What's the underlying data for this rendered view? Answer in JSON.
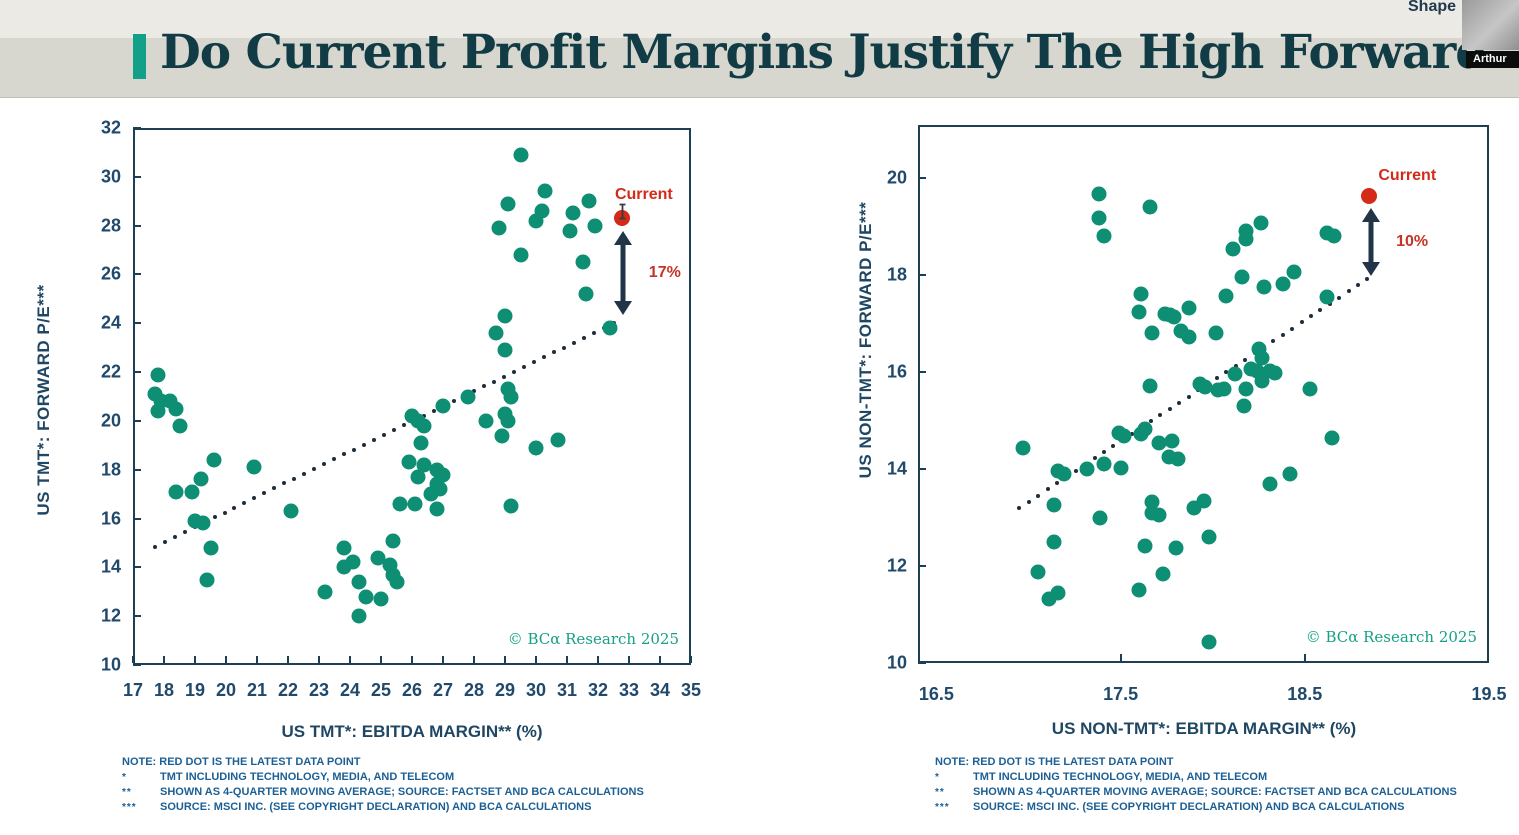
{
  "page": {
    "title": "Do Current Profit Margins Justify The High Forward",
    "shape_label": "Shape",
    "participant_label": "Arthur"
  },
  "colors": {
    "dot_green": "#0e8e73",
    "current_red": "#d42a1a",
    "annotation_red": "#c53426",
    "axis_navy": "#1d3f53",
    "tick_label_blue": "#20496b",
    "trend_dot": "#1f2d3a",
    "arrow_navy": "#223548",
    "watermark_teal": "#16a085",
    "footnote_blue": "#1c5f94",
    "header_beige": "#d8d7cf",
    "title_teal": "#123c45",
    "accent_teal": "#13a089"
  },
  "chart_data": [
    {
      "type": "scatter",
      "xlabel": "US TMT*: EBITDA MARGIN** (%)",
      "ylabel": "US TMT*: FORWARD P/E***",
      "xlim": [
        17,
        35
      ],
      "ylim": [
        10,
        32
      ],
      "x_ticks": [
        17,
        18,
        19,
        20,
        21,
        22,
        23,
        24,
        25,
        26,
        27,
        28,
        29,
        30,
        31,
        32,
        33,
        34,
        35
      ],
      "x_tick_marks": [
        17,
        18,
        19,
        20,
        21,
        22,
        23,
        24,
        25,
        26,
        27,
        28,
        29,
        30,
        31,
        32,
        33,
        34,
        35
      ],
      "y_ticks": [
        10,
        12,
        14,
        16,
        18,
        20,
        22,
        24,
        26,
        28,
        30,
        32
      ],
      "grid": false,
      "points": [
        [
          17.8,
          21.9
        ],
        [
          17.7,
          21.1
        ],
        [
          17.9,
          20.8
        ],
        [
          18.2,
          20.8
        ],
        [
          17.8,
          20.4
        ],
        [
          18.4,
          20.5
        ],
        [
          18.5,
          19.8
        ],
        [
          18.4,
          17.1
        ],
        [
          18.9,
          17.1
        ],
        [
          19.2,
          17.6
        ],
        [
          19.6,
          18.4
        ],
        [
          20.9,
          18.1
        ],
        [
          19.0,
          15.9
        ],
        [
          19.25,
          15.8
        ],
        [
          19.5,
          14.8
        ],
        [
          19.4,
          13.5
        ],
        [
          22.1,
          16.3
        ],
        [
          23.2,
          13.0
        ],
        [
          23.8,
          14.8
        ],
        [
          23.8,
          14.0
        ],
        [
          24.1,
          14.2
        ],
        [
          24.3,
          13.4
        ],
        [
          24.5,
          12.8
        ],
        [
          25.0,
          12.7
        ],
        [
          24.3,
          12.0
        ],
        [
          24.9,
          14.4
        ],
        [
          25.3,
          14.1
        ],
        [
          25.4,
          13.7
        ],
        [
          25.5,
          13.4
        ],
        [
          25.4,
          15.1
        ],
        [
          25.9,
          18.3
        ],
        [
          26.4,
          18.2
        ],
        [
          26.8,
          18.0
        ],
        [
          27.0,
          17.8
        ],
        [
          26.2,
          17.7
        ],
        [
          26.8,
          17.4
        ],
        [
          26.9,
          17.2
        ],
        [
          26.6,
          17.0
        ],
        [
          25.6,
          16.6
        ],
        [
          26.1,
          16.6
        ],
        [
          26.8,
          16.4
        ],
        [
          29.2,
          16.5
        ],
        [
          26.0,
          20.2
        ],
        [
          26.2,
          20.0
        ],
        [
          26.4,
          19.8
        ],
        [
          26.3,
          19.1
        ],
        [
          27.0,
          20.6
        ],
        [
          27.8,
          21.0
        ],
        [
          28.4,
          20.0
        ],
        [
          28.9,
          19.4
        ],
        [
          29.1,
          21.3
        ],
        [
          29.2,
          21.0
        ],
        [
          29.0,
          20.3
        ],
        [
          29.1,
          20.0
        ],
        [
          30.0,
          18.9
        ],
        [
          30.7,
          19.2
        ],
        [
          29.5,
          30.9
        ],
        [
          30.3,
          29.4
        ],
        [
          29.1,
          28.9
        ],
        [
          30.2,
          28.6
        ],
        [
          30.0,
          28.2
        ],
        [
          31.7,
          29.0
        ],
        [
          31.2,
          28.5
        ],
        [
          31.1,
          27.8
        ],
        [
          31.9,
          28.0
        ],
        [
          28.8,
          27.9
        ],
        [
          29.5,
          26.8
        ],
        [
          31.5,
          26.5
        ],
        [
          31.6,
          25.2
        ],
        [
          29.0,
          24.3
        ],
        [
          28.7,
          23.6
        ],
        [
          29.0,
          22.9
        ],
        [
          32.4,
          23.8
        ]
      ],
      "trend": {
        "style": "dotted",
        "from": [
          17.7,
          14.85
        ],
        "to": [
          32.5,
          24.0
        ]
      },
      "current": {
        "x": 32.77,
        "y": 28.3,
        "label": "Current"
      },
      "gap": {
        "x": 32.8,
        "y_top": 27.78,
        "y_bottom": 24.35,
        "label": "17%"
      },
      "watermark": "© BCα Research 2025",
      "note": "NOTE: RED DOT IS THE LATEST DATA POINT",
      "footnotes": [
        {
          "marker": "*",
          "text": "TMT INCLUDING TECHNOLOGY, MEDIA, AND TELECOM"
        },
        {
          "marker": "**",
          "text": "SHOWN AS 4-QUARTER MOVING AVERAGE; SOURCE: FACTSET AND BCA CALCULATIONS"
        },
        {
          "marker": "***",
          "text": "SOURCE: MSCI INC. (SEE COPYRIGHT DECLARATION) AND BCA CALCULATIONS"
        }
      ]
    },
    {
      "type": "scatter",
      "xlabel": "US NON-TMT*: EBITDA MARGIN** (%)",
      "ylabel": "US NON-TMT*: FORWARD P/E***",
      "xlim": [
        16.4,
        19.5
      ],
      "ylim": [
        10,
        21.1
      ],
      "x_ticks": [
        16.5,
        17.5,
        18.5,
        19.5
      ],
      "x_tick_marks": [
        17.5,
        18.5
      ],
      "y_ticks": [
        10,
        12,
        14,
        16,
        18,
        20
      ],
      "grid": false,
      "points": [
        [
          17.38,
          19.67
        ],
        [
          17.38,
          19.19
        ],
        [
          17.41,
          18.81
        ],
        [
          17.66,
          19.4
        ],
        [
          18.11,
          18.54
        ],
        [
          18.18,
          18.75
        ],
        [
          18.18,
          18.92
        ],
        [
          18.26,
          19.07
        ],
        [
          18.62,
          18.88
        ],
        [
          18.66,
          18.8
        ],
        [
          17.61,
          17.62
        ],
        [
          17.6,
          17.24
        ],
        [
          17.74,
          17.2
        ],
        [
          17.77,
          17.17
        ],
        [
          17.79,
          17.13
        ],
        [
          17.87,
          17.33
        ],
        [
          18.07,
          17.57
        ],
        [
          18.62,
          17.55
        ],
        [
          17.67,
          16.8
        ],
        [
          17.83,
          16.86
        ],
        [
          17.87,
          16.72
        ],
        [
          18.02,
          16.8
        ],
        [
          18.16,
          17.96
        ],
        [
          18.28,
          17.75
        ],
        [
          18.38,
          17.82
        ],
        [
          18.44,
          18.06
        ],
        [
          18.25,
          16.47
        ],
        [
          18.27,
          16.3
        ],
        [
          18.21,
          16.06
        ],
        [
          18.24,
          16.02
        ],
        [
          18.31,
          16.02
        ],
        [
          18.34,
          15.99
        ],
        [
          18.27,
          15.81
        ],
        [
          18.12,
          15.96
        ],
        [
          18.06,
          15.65
        ],
        [
          18.18,
          15.65
        ],
        [
          18.17,
          15.3
        ],
        [
          18.53,
          15.65
        ],
        [
          17.93,
          15.76
        ],
        [
          17.96,
          15.69
        ],
        [
          17.66,
          15.71
        ],
        [
          18.03,
          15.64
        ],
        [
          17.49,
          14.75
        ],
        [
          17.52,
          14.68
        ],
        [
          17.61,
          14.72
        ],
        [
          17.63,
          14.82
        ],
        [
          17.71,
          14.53
        ],
        [
          17.78,
          14.59
        ],
        [
          17.76,
          14.24
        ],
        [
          17.81,
          14.2
        ],
        [
          16.97,
          14.43
        ],
        [
          17.16,
          13.97
        ],
        [
          17.19,
          13.9
        ],
        [
          17.32,
          14.0
        ],
        [
          17.41,
          14.1
        ],
        [
          17.5,
          14.03
        ],
        [
          18.65,
          14.65
        ],
        [
          18.42,
          13.9
        ],
        [
          18.31,
          13.69
        ],
        [
          17.14,
          13.25
        ],
        [
          17.39,
          13.0
        ],
        [
          17.67,
          13.33
        ],
        [
          17.67,
          13.1
        ],
        [
          17.71,
          13.05
        ],
        [
          17.9,
          13.2
        ],
        [
          17.95,
          13.35
        ],
        [
          17.14,
          12.49
        ],
        [
          17.63,
          12.42
        ],
        [
          17.8,
          12.38
        ],
        [
          17.98,
          12.59
        ],
        [
          17.05,
          11.87
        ],
        [
          17.11,
          11.32
        ],
        [
          17.16,
          11.45
        ],
        [
          17.73,
          11.83
        ],
        [
          17.6,
          11.5
        ],
        [
          17.98,
          10.44
        ]
      ],
      "trend": {
        "style": "dotted",
        "from": [
          16.95,
          13.2
        ],
        "to": [
          18.84,
          17.92
        ]
      },
      "current": {
        "x": 18.85,
        "y": 19.63,
        "label": "Current"
      },
      "gap": {
        "x": 18.86,
        "y_top": 19.38,
        "y_bottom": 17.98,
        "label": "10%"
      },
      "watermark": "© BCα Research 2025",
      "note": "NOTE: RED DOT IS THE LATEST DATA POINT",
      "footnotes": [
        {
          "marker": "*",
          "text": "TMT INCLUDING TECHNOLOGY, MEDIA, AND TELECOM"
        },
        {
          "marker": "**",
          "text": "SHOWN AS 4-QUARTER MOVING AVERAGE; SOURCE: FACTSET AND BCA CALCULATIONS"
        },
        {
          "marker": "***",
          "text": "SOURCE: MSCI INC. (SEE COPYRIGHT DECLARATION) AND BCA CALCULATIONS"
        }
      ]
    }
  ]
}
